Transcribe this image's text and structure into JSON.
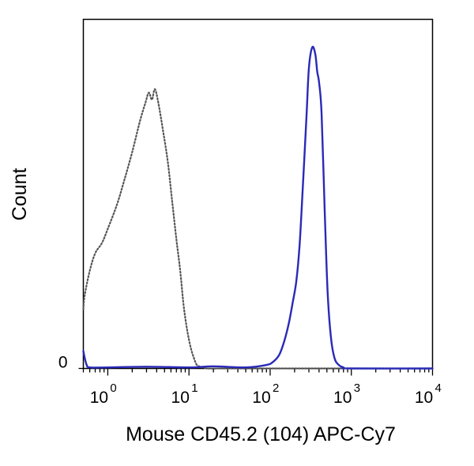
{
  "chart_data": {
    "type": "line",
    "title": "",
    "xlabel": "Mouse CD45.2 (104) APC-Cy7",
    "ylabel": "Count",
    "x_scale": "log",
    "xlim": [
      0.5,
      10000
    ],
    "ylim": [
      0,
      100
    ],
    "x_ticks": [
      {
        "value": 1,
        "base": "10",
        "exp": "0"
      },
      {
        "value": 10,
        "base": "10",
        "exp": "1"
      },
      {
        "value": 100,
        "base": "10",
        "exp": "2"
      },
      {
        "value": 1000,
        "base": "10",
        "exp": "3"
      },
      {
        "value": 10000,
        "base": "10",
        "exp": "4"
      }
    ],
    "y_ticks": [
      {
        "value": 0,
        "label": "0"
      }
    ],
    "grid": false,
    "legend": "none",
    "series": [
      {
        "style": "dotted",
        "color": "#555555",
        "x": [
          0.5,
          0.52,
          0.6,
          0.7,
          0.85,
          1.0,
          1.3,
          1.6,
          2.0,
          2.5,
          2.9,
          3.2,
          3.5,
          3.8,
          4.2,
          4.8,
          5.5,
          6.2,
          7.0,
          7.8,
          8.6,
          9.5,
          10.5,
          11.5,
          12.5,
          14,
          17,
          25,
          50,
          100,
          300,
          1000,
          10000
        ],
        "y": [
          17,
          21,
          28,
          33,
          36,
          40,
          47,
          54,
          62,
          71,
          76,
          79,
          77,
          80,
          76,
          68,
          59,
          48,
          37,
          28,
          18,
          11,
          6,
          3,
          1,
          0.5,
          0,
          0,
          0,
          0,
          0,
          0,
          0
        ]
      },
      {
        "style": "solid",
        "color": "#2a2ab8",
        "x": [
          0.5,
          0.52,
          0.55,
          0.6,
          1,
          3,
          10,
          20,
          50,
          90,
          110,
          130,
          150,
          170,
          190,
          210,
          230,
          250,
          280,
          300,
          330,
          360,
          380,
          400,
          430,
          470,
          510,
          560,
          620,
          700,
          800,
          1000,
          10000
        ],
        "y": [
          5,
          3,
          1,
          0.3,
          0.3,
          0.5,
          0.3,
          0.6,
          0.3,
          1,
          2,
          4,
          8,
          13,
          19,
          25,
          35,
          50,
          72,
          86,
          92,
          90,
          85,
          82,
          73,
          45,
          22,
          9,
          3,
          1,
          0.3,
          0,
          0
        ]
      }
    ]
  }
}
